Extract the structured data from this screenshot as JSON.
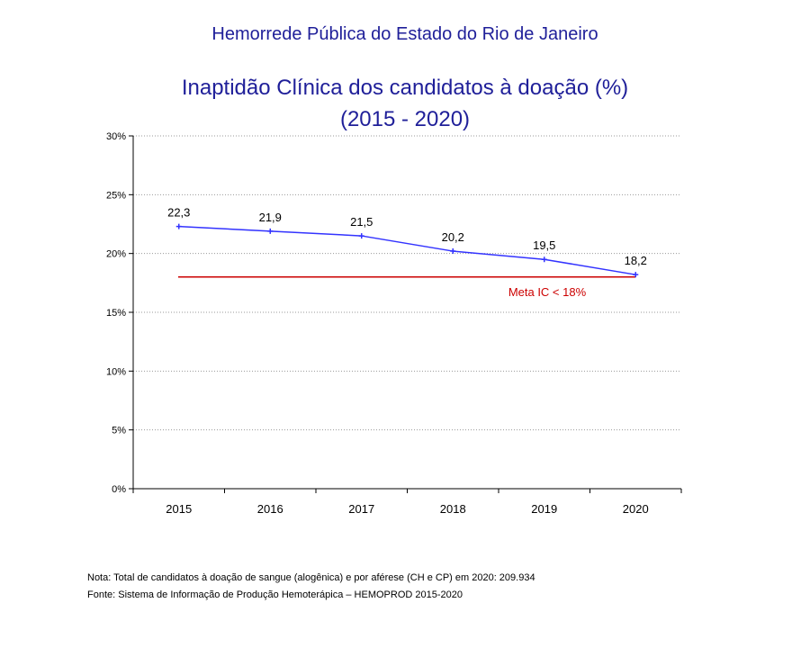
{
  "header": {
    "organization": "Hemorrede Pública do Estado do Rio de Janeiro",
    "title": "Inaptidão Clínica dos candidatos à doação (%)",
    "subtitle": "(2015 - 2020)"
  },
  "chart_data": {
    "type": "line",
    "categories": [
      "2015",
      "2016",
      "2017",
      "2018",
      "2019",
      "2020"
    ],
    "series": [
      {
        "values": [
          22.3,
          21.9,
          21.5,
          20.2,
          19.5,
          18.2
        ],
        "labels": [
          "22,3",
          "21,9",
          "21,5",
          "20,2",
          "19,5",
          "18,2"
        ],
        "color": "#3333ff"
      }
    ],
    "target_line": {
      "label": "Meta IC < 18%",
      "value": 18,
      "color": "#cc0000"
    },
    "ylim": [
      0,
      30
    ],
    "yticks": [
      "0%",
      "5%",
      "10%",
      "15%",
      "20%",
      "25%",
      "30%"
    ],
    "ytick_values": [
      0,
      5,
      10,
      15,
      20,
      25,
      30
    ],
    "grid": "horizontal dotted",
    "xlabel": "",
    "ylabel": ""
  },
  "footer": {
    "note": "Nota: Total de candidatos à doação de sangue (alogênica) e por aférese (CH e CP)  em 2020: 209.934",
    "source": "Fonte: Sistema de Informação de Produção Hemoterápica – HEMOPROD 2015-2020"
  }
}
